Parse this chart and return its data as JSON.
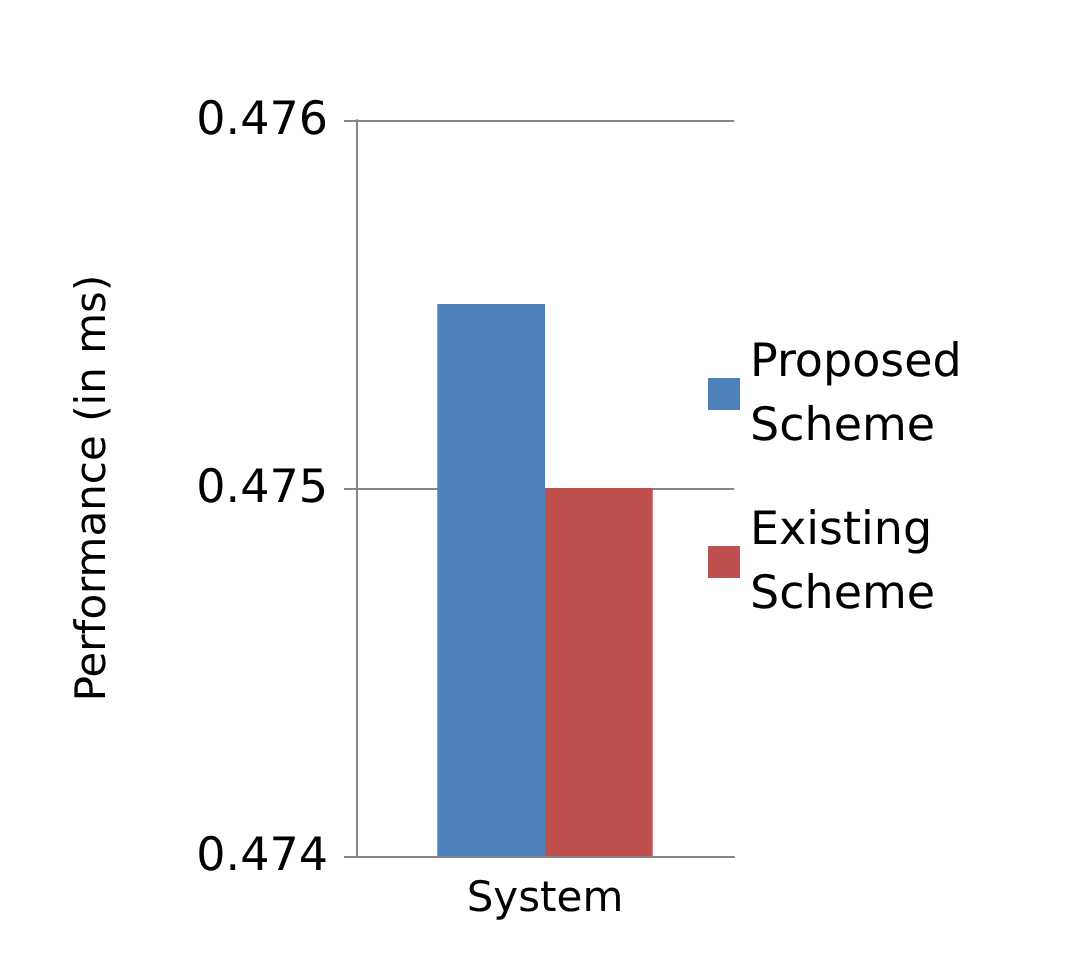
{
  "chart_data": {
    "type": "bar",
    "ylabel": "Performance (in ms)",
    "categories": [
      "System"
    ],
    "series": [
      {
        "name": "Proposed Scheme",
        "color": "#4f81bd",
        "values": [
          0.4755
        ]
      },
      {
        "name": "Existing Scheme",
        "color": "#c0504d",
        "values": [
          0.475
        ]
      }
    ],
    "ylim": [
      0.474,
      0.476
    ],
    "yticks": [
      0.474,
      0.475,
      0.476
    ],
    "grid": "y",
    "legend": "right"
  }
}
